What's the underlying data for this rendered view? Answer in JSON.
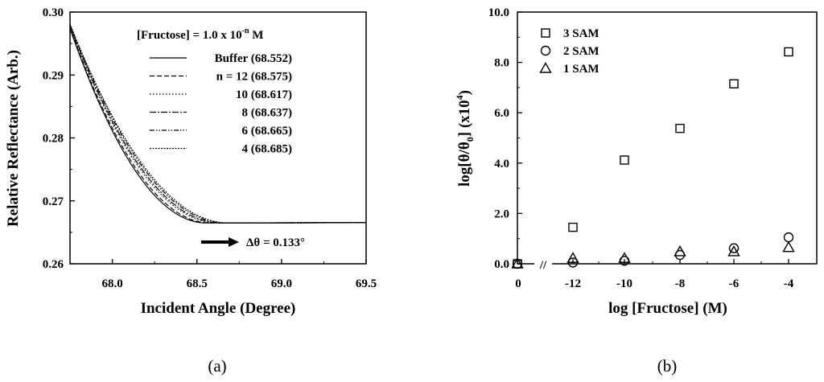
{
  "chart_data": [
    {
      "type": "line",
      "panel": "(a)",
      "title": "",
      "xlabel": "Incident Angle (Degree)",
      "ylabel": "Relative Reflectance (Arb.)",
      "xlim": [
        67.75,
        69.5
      ],
      "ylim": [
        0.26,
        0.3
      ],
      "xticks": [
        "68.0",
        "68.5",
        "69.0",
        "69.5"
      ],
      "xtick_values": [
        68.0,
        68.5,
        69.0,
        69.5
      ],
      "yticks": [
        "0.26",
        "0.27",
        "0.28",
        "0.29",
        "0.30"
      ],
      "ytick_values": [
        0.26,
        0.27,
        0.28,
        0.29,
        0.3
      ],
      "legend_title": "[Fructose] = 1.0 x 10",
      "legend_title_sup": "-n",
      "legend_title_unit": " M",
      "curve_min_reflectance": 0.2665,
      "series": [
        {
          "name": "Buffer",
          "label": "Buffer (68.552)",
          "min_angle": 68.552,
          "dash": "solid"
        },
        {
          "name": "n = 12",
          "label": "n = 12  (68.575)",
          "min_angle": 68.575,
          "dash": "dashed"
        },
        {
          "name": "10",
          "label": "10  (68.617)",
          "min_angle": 68.617,
          "dash": "dotted"
        },
        {
          "name": "8",
          "label": "8  (68.637)",
          "min_angle": 68.637,
          "dash": "dashdot"
        },
        {
          "name": "6",
          "label": "6  (68.665)",
          "min_angle": 68.665,
          "dash": "dashdotdot"
        },
        {
          "name": "4",
          "label": "4  (68.685)",
          "min_angle": 68.685,
          "dash": "shortdot"
        }
      ],
      "annotation": "Δθ = 0.133°"
    },
    {
      "type": "scatter",
      "panel": "(b)",
      "title": "",
      "xlabel": "log [Fructose] (M)",
      "ylabel_main": "log[θ/θ",
      "ylabel_sub": "0",
      "ylabel_mid": "] (x10",
      "ylabel_sup": "4",
      "ylabel_end": ")",
      "categories": [
        "0",
        "-12",
        "-10",
        "-8",
        "-6",
        "-4"
      ],
      "ylim": [
        0,
        10
      ],
      "yticks": [
        "0.0",
        "2.0",
        "4.0",
        "6.0",
        "8.0",
        "10.0"
      ],
      "ytick_values": [
        0,
        2,
        4,
        6,
        8,
        10
      ],
      "axis_break": "//",
      "series": [
        {
          "name": "3 SAM",
          "marker": "square",
          "values": [
            0.0,
            1.45,
            4.12,
            5.38,
            7.15,
            8.42
          ]
        },
        {
          "name": "2 SAM",
          "marker": "circle",
          "values": [
            0.0,
            0.05,
            0.12,
            0.35,
            0.62,
            1.05
          ]
        },
        {
          "name": "1 SAM",
          "marker": "triangle",
          "values": [
            0.0,
            0.22,
            0.22,
            0.48,
            0.48,
            0.65
          ]
        }
      ]
    }
  ]
}
